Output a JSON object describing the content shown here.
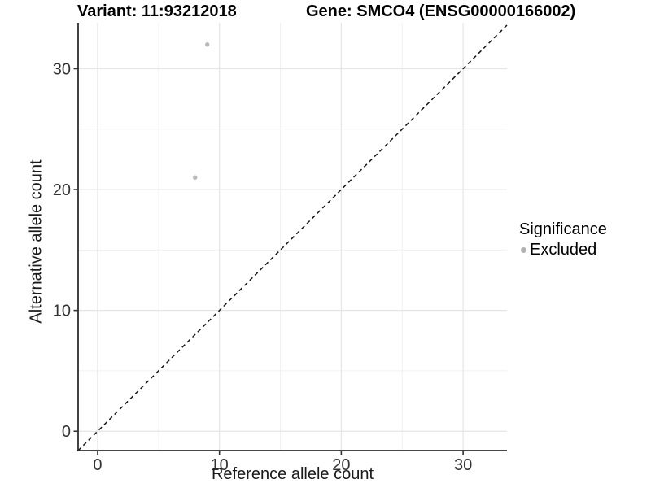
{
  "chart_data": {
    "type": "scatter",
    "title_left": "Variant: 11:93212018",
    "title_right": "Gene: SMCO4 (ENSG00000166002)",
    "xlabel": "Reference allele count",
    "ylabel": "Alternative allele count",
    "x_ticks": [
      0,
      10,
      20,
      30
    ],
    "y_ticks": [
      0,
      10,
      20,
      30
    ],
    "xlim": [
      -1.6,
      33.6
    ],
    "ylim": [
      -1.6,
      33.8
    ],
    "points": [
      {
        "x": 9,
        "y": 32,
        "significance": "Excluded"
      },
      {
        "x": 8,
        "y": 21,
        "significance": "Excluded"
      }
    ],
    "point_color": "#b9b9b9",
    "reference_line": {
      "type": "identity",
      "style": "dashed",
      "color": "#141414"
    },
    "grid": {
      "major_color": "#e5e5e5",
      "minor_color": "#f1f1f1",
      "background": "#ffffff"
    },
    "axis": {
      "line_color": "#2e2e2e",
      "tick_color": "#333333",
      "tick_label_color": "#333333"
    },
    "legend": {
      "title": "Significance",
      "position": "right",
      "items": [
        {
          "label": "Excluded",
          "color": "#b3b3b3"
        }
      ]
    }
  }
}
